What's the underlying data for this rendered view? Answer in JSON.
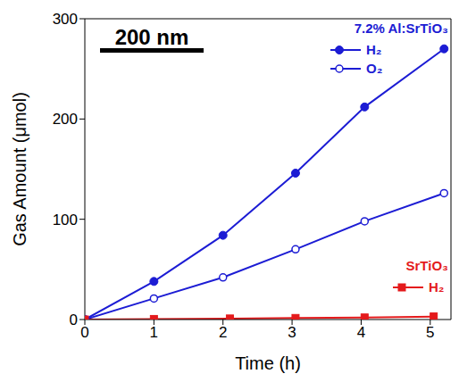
{
  "chart_data": {
    "type": "line",
    "x_label": "Time (h)",
    "y_label": "Gas Amount (μmol)",
    "xlim": [
      0,
      5.3
    ],
    "xticks": [
      0,
      1,
      2,
      3,
      4,
      5
    ],
    "ylim": [
      0,
      300
    ],
    "yticks": [
      0,
      100,
      200,
      300
    ],
    "grid": false,
    "legend": "right",
    "annotations": [
      "200 nm"
    ],
    "series": [
      {
        "name": "H₂",
        "group": "7.2% Al:SrTiO₃",
        "color": "#1c1cd4",
        "marker": "circle",
        "x": [
          0,
          1,
          2,
          3.05,
          4.05,
          5.2
        ],
        "values": [
          0,
          38,
          84,
          146,
          212,
          270
        ]
      },
      {
        "name": "O₂",
        "group": "7.2% Al:SrTiO₃",
        "color": "#1c1cd4",
        "marker": "open_circle",
        "x": [
          0,
          1,
          2,
          3.05,
          4.05,
          5.2
        ],
        "values": [
          0,
          21,
          42,
          70,
          98,
          126
        ]
      },
      {
        "name": "H₂",
        "group": "SrTiO₃",
        "color": "#e41a1c",
        "marker": "square",
        "x": [
          0,
          1,
          2.1,
          3.05,
          4.05,
          5.05
        ],
        "values": [
          0,
          0.5,
          1,
          1.5,
          2,
          3
        ]
      }
    ]
  }
}
